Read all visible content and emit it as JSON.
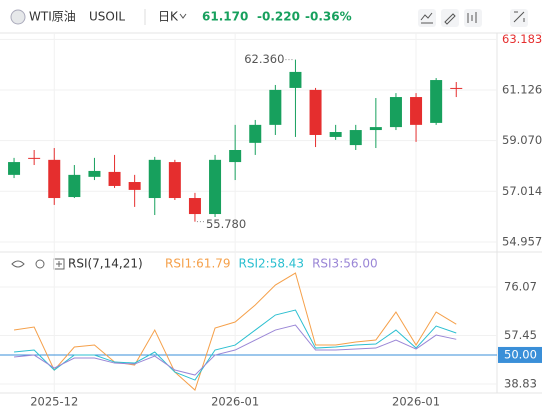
{
  "header": {
    "name": "WTI原油",
    "symbol": "USOIL",
    "period": "日K",
    "price": "61.170",
    "change": "-0.220",
    "change_pct": "-0.36%"
  },
  "chart_data": [
    {
      "type": "candlestick",
      "up_color": "#17a05d",
      "down_color": "#e52e2e",
      "categories": [
        null,
        null,
        "2025-12",
        null,
        null,
        null,
        null,
        null,
        null,
        null,
        null,
        "2026-01",
        null,
        null,
        null,
        null,
        null,
        null,
        null,
        null,
        "2026-01",
        null,
        null
      ],
      "open": [
        57.68,
        58.37,
        58.29,
        56.78,
        57.6,
        57.8,
        57.39,
        56.74,
        58.2,
        56.74,
        56.09,
        58.2,
        58.98,
        59.71,
        61.21,
        61.13,
        59.22,
        58.89,
        59.5,
        59.62,
        60.84,
        59.79,
        61.21
      ],
      "high": [
        58.37,
        58.69,
        58.77,
        58.08,
        58.37,
        58.49,
        57.68,
        58.41,
        58.29,
        56.95,
        58.49,
        59.71,
        59.91,
        61.33,
        62.36,
        61.21,
        59.71,
        59.71,
        60.8,
        61.0,
        61.0,
        61.61,
        61.45
      ],
      "low": [
        57.55,
        58.08,
        56.46,
        56.74,
        57.47,
        57.15,
        56.38,
        56.05,
        56.66,
        55.78,
        55.97,
        57.47,
        58.49,
        59.3,
        59.22,
        58.81,
        59.1,
        58.69,
        58.77,
        59.5,
        59.02,
        59.71,
        60.84
      ],
      "close": [
        58.2,
        58.33,
        56.74,
        57.68,
        57.84,
        57.23,
        57.07,
        58.29,
        56.74,
        56.09,
        58.29,
        58.69,
        59.71,
        61.13,
        61.86,
        59.3,
        59.42,
        59.5,
        59.62,
        60.84,
        59.71,
        61.53,
        61.17
      ],
      "annotations": [
        "62.360",
        "55.780"
      ],
      "ylim": [
        54.63,
        63.44
      ],
      "yticks": [
        54.957,
        57.014,
        {
          "value": 59.07,
          "label": "59.070"
        },
        61.126,
        63.183
      ]
    },
    {
      "type": "line",
      "title": "RSI(7,14,21)",
      "series": [
        {
          "name": "RSI1:61.79",
          "color": "#f5a04a",
          "values": [
            59.56,
            60.71,
            44.21,
            53.04,
            53.8,
            47.28,
            46.13,
            59.56,
            43.44,
            36.53,
            60.33,
            62.63,
            69.16,
            76.84,
            81.44,
            53.8,
            53.8,
            54.96,
            55.72,
            66.47,
            53.8,
            66.47,
            61.79
          ]
        },
        {
          "name": "RSI2:58.43",
          "color": "#2bbfd0",
          "values": [
            51.12,
            51.89,
            44.21,
            49.97,
            49.97,
            47.28,
            46.89,
            51.12,
            43.44,
            40.37,
            51.89,
            53.8,
            59.56,
            65.32,
            67.24,
            52.65,
            53.04,
            53.8,
            54.19,
            59.56,
            52.65,
            61.1,
            58.43
          ]
        },
        {
          "name": "RSI3:56.00",
          "color": "#9a86d6",
          "values": [
            49.2,
            49.97,
            44.98,
            48.82,
            48.82,
            46.89,
            46.51,
            49.58,
            44.21,
            42.29,
            49.97,
            51.89,
            55.72,
            59.56,
            61.48,
            51.89,
            51.89,
            52.27,
            52.65,
            55.72,
            52.27,
            57.64,
            56.0
          ]
        }
      ],
      "ylim": [
        35.4,
        82.6
      ],
      "yticks": [
        38.83,
        {
          "value": 50,
          "label": "50.00"
        },
        57.45,
        76.07
      ],
      "reference_line": {
        "value": 50,
        "color": "#3a8fd8"
      }
    }
  ]
}
